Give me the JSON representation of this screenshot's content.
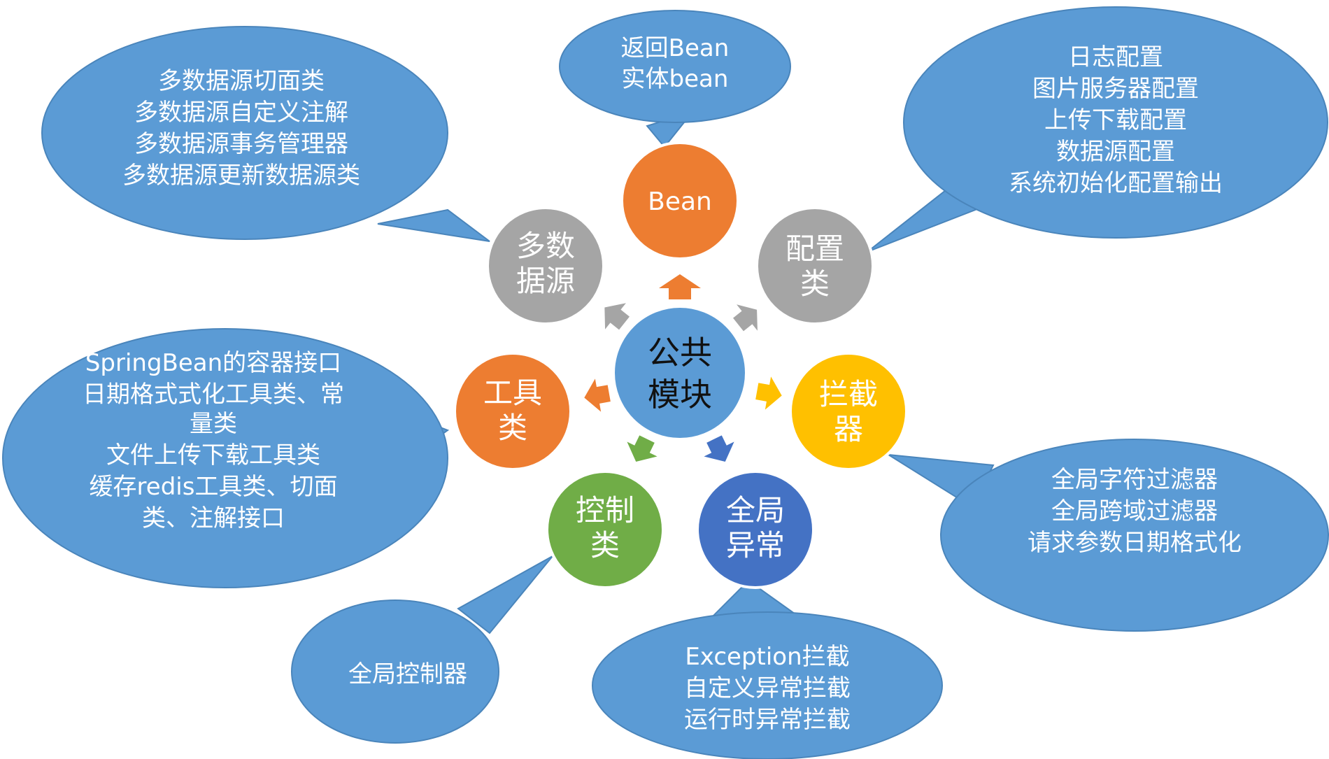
{
  "colors": {
    "bubble": "#5b9bd5",
    "bubble_stroke": "#4a85bb",
    "gray": "#a5a5a5",
    "orange": "#ed7d31",
    "yellow": "#ffc000",
    "green": "#70ad47",
    "blue": "#4472c4",
    "white": "#ffffff",
    "dark": "#111111"
  },
  "center": {
    "line1": "公共",
    "line2": "模块"
  },
  "nodes": {
    "bean": {
      "label": "Bean"
    },
    "config": {
      "line1": "配置",
      "line2": "类"
    },
    "interceptor": {
      "line1": "拦截",
      "line2": "器"
    },
    "exception": {
      "line1": "全局",
      "line2": "异常"
    },
    "controller": {
      "line1": "控制",
      "line2": "类"
    },
    "tools": {
      "line1": "工具",
      "line2": "类"
    },
    "datasource": {
      "line1": "多数",
      "line2": "据源"
    }
  },
  "callouts": {
    "bean": [
      "返回Bean",
      "实体bean"
    ],
    "config": [
      "日志配置",
      "图片服务器配置",
      "上传下载配置",
      "数据源配置",
      "系统初始化配置输出"
    ],
    "interceptor": [
      "全局字符过滤器",
      "全局跨域过滤器",
      "请求参数日期格式化"
    ],
    "exception": [
      "Exception拦截",
      "自定义异常拦截",
      "运行时异常拦截"
    ],
    "controller": [
      "全局控制器"
    ],
    "tools": [
      "SpringBean的容器接口",
      "日期格式式化工具类、常",
      "量类",
      "文件上传下载工具类",
      "缓存redis工具类、切面",
      "类、注解接口"
    ],
    "datasource": [
      "多数据源切面类",
      "多数据源自定义注解",
      "多数据源事务管理器",
      "多数据源更新数据源类"
    ]
  }
}
